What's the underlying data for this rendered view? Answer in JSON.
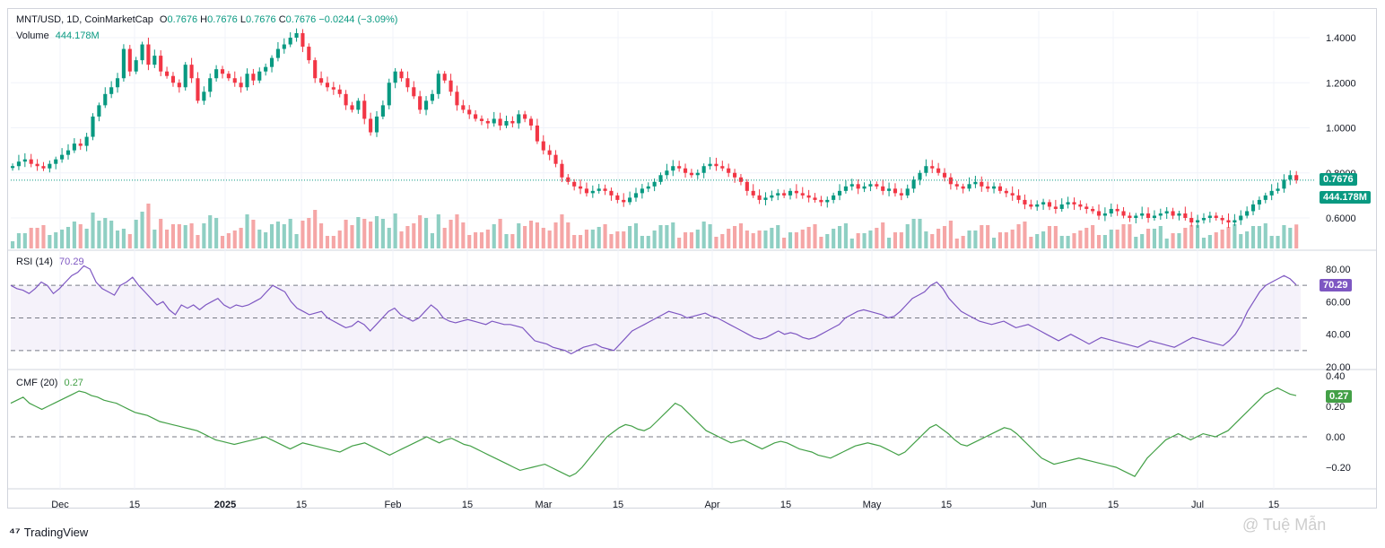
{
  "header": {
    "symbol": "MNT/USD, 1D, CoinMarketCap",
    "open_label": "O",
    "open": "0.7676",
    "high_label": "H",
    "high": "0.7676",
    "low_label": "L",
    "low": "0.7676",
    "close_label": "C",
    "close": "0.7676",
    "change": "−0.0244 (−3.09%)"
  },
  "volume_legend": {
    "label": "Volume",
    "value": "444.178M"
  },
  "rsi_legend": {
    "label": "RSI (14)",
    "value": "70.29"
  },
  "cmf_legend": {
    "label": "CMF (20)",
    "value": "0.27"
  },
  "tags": {
    "price": "0.7676",
    "volume": "444.178M",
    "rsi": "70.29",
    "cmf": "0.27"
  },
  "brand": "TradingView",
  "watermark": "@ Tuệ Mẫn",
  "colors": {
    "up": "#089981",
    "down": "#f23645",
    "rsi": "#7e57c2",
    "cmf": "#43a047",
    "volume_up": "#8fcfc3",
    "volume_down": "#f5a6a6"
  },
  "chart_data": [
    {
      "type": "candlestick",
      "title": "MNT/USD, 1D, CoinMarketCap",
      "x_ticks": [
        "Dec",
        "15",
        "2025",
        "15",
        "Feb",
        "15",
        "Mar",
        "15",
        "Apr",
        "15",
        "May",
        "15",
        "Jun",
        "15",
        "Jul",
        "15"
      ],
      "y_ticks": [
        "1.4000",
        "1.2000",
        "1.0000",
        "0.8000",
        "0.6000"
      ],
      "ylim": [
        0.53,
        1.45
      ],
      "last_price": 0.7676,
      "close_series": [
        0.83,
        0.85,
        0.86,
        0.84,
        0.83,
        0.82,
        0.84,
        0.86,
        0.88,
        0.9,
        0.93,
        0.92,
        0.96,
        1.05,
        1.1,
        1.15,
        1.18,
        1.22,
        1.35,
        1.25,
        1.3,
        1.37,
        1.28,
        1.32,
        1.25,
        1.23,
        1.2,
        1.18,
        1.28,
        1.22,
        1.12,
        1.16,
        1.22,
        1.26,
        1.24,
        1.22,
        1.2,
        1.18,
        1.24,
        1.21,
        1.25,
        1.27,
        1.31,
        1.35,
        1.37,
        1.4,
        1.42,
        1.36,
        1.3,
        1.22,
        1.2,
        1.18,
        1.17,
        1.15,
        1.1,
        1.08,
        1.12,
        1.04,
        0.98,
        1.05,
        1.1,
        1.2,
        1.25,
        1.22,
        1.18,
        1.14,
        1.08,
        1.12,
        1.15,
        1.24,
        1.21,
        1.16,
        1.1,
        1.08,
        1.06,
        1.04,
        1.03,
        1.02,
        1.04,
        1.01,
        1.03,
        1.02,
        1.06,
        1.04,
        1.01,
        0.94,
        0.9,
        0.88,
        0.84,
        0.78,
        0.76,
        0.74,
        0.73,
        0.71,
        0.72,
        0.73,
        0.72,
        0.7,
        0.68,
        0.67,
        0.69,
        0.71,
        0.73,
        0.74,
        0.76,
        0.79,
        0.81,
        0.83,
        0.82,
        0.8,
        0.79,
        0.8,
        0.83,
        0.84,
        0.83,
        0.82,
        0.8,
        0.78,
        0.76,
        0.72,
        0.7,
        0.68,
        0.69,
        0.7,
        0.71,
        0.7,
        0.72,
        0.71,
        0.7,
        0.69,
        0.68,
        0.67,
        0.68,
        0.7,
        0.72,
        0.74,
        0.75,
        0.73,
        0.74,
        0.75,
        0.74,
        0.72,
        0.73,
        0.71,
        0.7,
        0.73,
        0.77,
        0.8,
        0.83,
        0.82,
        0.8,
        0.78,
        0.75,
        0.74,
        0.73,
        0.75,
        0.76,
        0.74,
        0.73,
        0.74,
        0.72,
        0.71,
        0.7,
        0.68,
        0.66,
        0.65,
        0.66,
        0.67,
        0.65,
        0.64,
        0.66,
        0.67,
        0.66,
        0.65,
        0.64,
        0.63,
        0.61,
        0.62,
        0.64,
        0.63,
        0.61,
        0.6,
        0.61,
        0.62,
        0.6,
        0.61,
        0.62,
        0.63,
        0.61,
        0.62,
        0.6,
        0.58,
        0.59,
        0.6,
        0.61,
        0.6,
        0.59,
        0.58,
        0.59,
        0.61,
        0.63,
        0.66,
        0.68,
        0.7,
        0.72,
        0.73,
        0.77,
        0.79,
        0.7676
      ],
      "volume_last": "444.178M"
    },
    {
      "type": "line",
      "title": "RSI (14)",
      "y_ticks": [
        "80.00",
        "60.00",
        "40.00",
        "20.00"
      ],
      "ylim": [
        18,
        86
      ],
      "bands": [
        70,
        50,
        30
      ],
      "values": [
        70,
        68,
        67,
        65,
        68,
        72,
        70,
        65,
        68,
        72,
        76,
        78,
        82,
        80,
        72,
        68,
        66,
        64,
        70,
        72,
        75,
        70,
        66,
        62,
        58,
        60,
        55,
        52,
        58,
        56,
        58,
        55,
        58,
        60,
        62,
        58,
        56,
        58,
        57,
        58,
        60,
        62,
        66,
        70,
        68,
        66,
        60,
        56,
        54,
        52,
        53,
        54,
        50,
        48,
        46,
        44,
        45,
        48,
        46,
        42,
        46,
        50,
        54,
        56,
        52,
        50,
        48,
        50,
        54,
        58,
        55,
        50,
        48,
        47,
        48,
        49,
        48,
        47,
        46,
        48,
        47,
        46,
        46,
        45,
        44,
        40,
        36,
        35,
        34,
        32,
        31,
        30,
        28,
        30,
        32,
        33,
        34,
        32,
        31,
        30,
        34,
        38,
        42,
        44,
        46,
        48,
        50,
        52,
        54,
        53,
        52,
        50,
        51,
        52,
        53,
        51,
        50,
        48,
        46,
        44,
        42,
        40,
        38,
        37,
        38,
        40,
        42,
        40,
        41,
        40,
        38,
        37,
        38,
        40,
        42,
        44,
        46,
        50,
        52,
        54,
        55,
        54,
        53,
        52,
        50,
        51,
        54,
        58,
        62,
        64,
        66,
        70,
        72,
        68,
        62,
        58,
        54,
        52,
        50,
        48,
        47,
        46,
        47,
        48,
        46,
        44,
        45,
        46,
        44,
        42,
        40,
        38,
        36,
        38,
        40,
        38,
        36,
        34,
        36,
        38,
        37,
        36,
        35,
        34,
        33,
        32,
        34,
        36,
        35,
        34,
        33,
        32,
        34,
        36,
        38,
        37,
        36,
        35,
        34,
        33,
        36,
        40,
        46,
        54,
        60,
        66,
        70,
        72,
        74,
        76,
        74,
        70.29
      ]
    },
    {
      "type": "line",
      "title": "CMF (20)",
      "y_ticks": [
        "0.40",
        "0.20",
        "0.00",
        "−0.20"
      ],
      "ylim": [
        -0.46,
        0.42
      ],
      "zero_line": 0,
      "values": [
        0.22,
        0.24,
        0.26,
        0.22,
        0.2,
        0.18,
        0.2,
        0.22,
        0.24,
        0.26,
        0.28,
        0.3,
        0.29,
        0.27,
        0.26,
        0.24,
        0.23,
        0.22,
        0.2,
        0.18,
        0.16,
        0.15,
        0.14,
        0.12,
        0.1,
        0.09,
        0.08,
        0.07,
        0.06,
        0.05,
        0.04,
        0.02,
        0.0,
        -0.02,
        -0.03,
        -0.04,
        -0.05,
        -0.04,
        -0.03,
        -0.02,
        -0.01,
        0.0,
        -0.02,
        -0.04,
        -0.06,
        -0.08,
        -0.06,
        -0.04,
        -0.05,
        -0.06,
        -0.07,
        -0.08,
        -0.09,
        -0.1,
        -0.08,
        -0.06,
        -0.05,
        -0.04,
        -0.06,
        -0.08,
        -0.1,
        -0.12,
        -0.1,
        -0.08,
        -0.06,
        -0.04,
        -0.02,
        0.0,
        -0.02,
        -0.04,
        -0.02,
        -0.01,
        -0.03,
        -0.05,
        -0.06,
        -0.08,
        -0.1,
        -0.12,
        -0.14,
        -0.16,
        -0.18,
        -0.2,
        -0.22,
        -0.21,
        -0.2,
        -0.19,
        -0.18,
        -0.2,
        -0.22,
        -0.24,
        -0.26,
        -0.24,
        -0.2,
        -0.15,
        -0.1,
        -0.05,
        0.0,
        0.03,
        0.06,
        0.08,
        0.07,
        0.05,
        0.04,
        0.06,
        0.1,
        0.14,
        0.18,
        0.22,
        0.2,
        0.16,
        0.12,
        0.08,
        0.04,
        0.02,
        0.0,
        -0.02,
        -0.04,
        -0.03,
        -0.02,
        -0.04,
        -0.06,
        -0.08,
        -0.06,
        -0.04,
        -0.03,
        -0.04,
        -0.06,
        -0.08,
        -0.09,
        -0.1,
        -0.12,
        -0.13,
        -0.14,
        -0.12,
        -0.1,
        -0.08,
        -0.06,
        -0.05,
        -0.04,
        -0.05,
        -0.06,
        -0.08,
        -0.1,
        -0.12,
        -0.1,
        -0.06,
        -0.02,
        0.02,
        0.06,
        0.08,
        0.05,
        0.02,
        -0.02,
        -0.05,
        -0.06,
        -0.04,
        -0.02,
        0.0,
        0.02,
        0.04,
        0.06,
        0.05,
        0.02,
        -0.02,
        -0.06,
        -0.1,
        -0.14,
        -0.16,
        -0.18,
        -0.17,
        -0.16,
        -0.15,
        -0.14,
        -0.15,
        -0.16,
        -0.17,
        -0.18,
        -0.19,
        -0.2,
        -0.22,
        -0.24,
        -0.26,
        -0.2,
        -0.14,
        -0.1,
        -0.06,
        -0.02,
        0.0,
        0.02,
        0.0,
        -0.02,
        0.0,
        0.02,
        0.01,
        0.0,
        0.02,
        0.04,
        0.08,
        0.12,
        0.16,
        0.2,
        0.24,
        0.28,
        0.3,
        0.32,
        0.3,
        0.28,
        0.27
      ]
    }
  ]
}
